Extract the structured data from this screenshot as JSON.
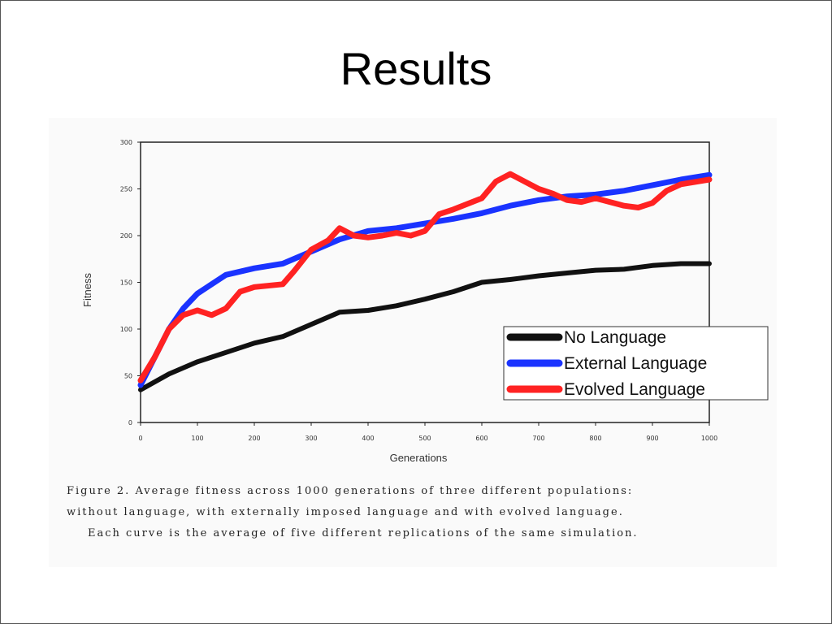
{
  "slide": {
    "title": "Results"
  },
  "caption": {
    "line1": "Figure 2. Average fitness across 1000 generations of three different populations:",
    "line2": "without language, with externally imposed language and with evolved language.",
    "line3": "Each curve is the average of five different replications of the same simulation."
  },
  "chart_data": {
    "type": "line",
    "xlabel": "Generations",
    "ylabel": "Fitness",
    "xlim": [
      0,
      1000
    ],
    "ylim": [
      0,
      300
    ],
    "x_ticks": [
      "0",
      "100",
      "200",
      "300",
      "400",
      "500",
      "600",
      "700",
      "800",
      "900",
      "1000"
    ],
    "y_ticks": [
      "0",
      "50",
      "100",
      "150",
      "200",
      "250",
      "300"
    ],
    "legend_position": "lower-right",
    "series": [
      {
        "name": "No Language",
        "color": "#111111",
        "x": [
          0,
          50,
          100,
          150,
          200,
          250,
          300,
          350,
          400,
          450,
          500,
          550,
          600,
          650,
          700,
          750,
          800,
          850,
          900,
          950,
          1000
        ],
        "y": [
          35,
          52,
          65,
          75,
          85,
          92,
          105,
          118,
          120,
          125,
          132,
          140,
          150,
          153,
          157,
          160,
          163,
          164,
          168,
          170,
          170
        ]
      },
      {
        "name": "External Language",
        "color": "#1a33ff",
        "x": [
          0,
          25,
          50,
          75,
          100,
          150,
          200,
          250,
          300,
          350,
          400,
          450,
          500,
          550,
          600,
          650,
          700,
          750,
          800,
          850,
          900,
          950,
          1000
        ],
        "y": [
          40,
          70,
          100,
          122,
          138,
          158,
          165,
          170,
          183,
          196,
          205,
          208,
          213,
          218,
          224,
          232,
          238,
          242,
          244,
          248,
          254,
          260,
          265
        ]
      },
      {
        "name": "Evolved Language",
        "color": "#ff2222",
        "x": [
          0,
          25,
          50,
          75,
          100,
          125,
          150,
          175,
          200,
          250,
          270,
          300,
          330,
          350,
          375,
          400,
          425,
          450,
          475,
          500,
          525,
          550,
          575,
          600,
          625,
          650,
          675,
          700,
          725,
          750,
          775,
          800,
          825,
          850,
          875,
          900,
          925,
          950,
          1000
        ],
        "y": [
          45,
          70,
          100,
          115,
          120,
          115,
          122,
          140,
          145,
          148,
          162,
          185,
          195,
          208,
          200,
          198,
          200,
          203,
          200,
          205,
          223,
          228,
          234,
          240,
          258,
          266,
          258,
          250,
          245,
          238,
          236,
          240,
          236,
          232,
          230,
          235,
          248,
          255,
          260
        ]
      }
    ]
  }
}
